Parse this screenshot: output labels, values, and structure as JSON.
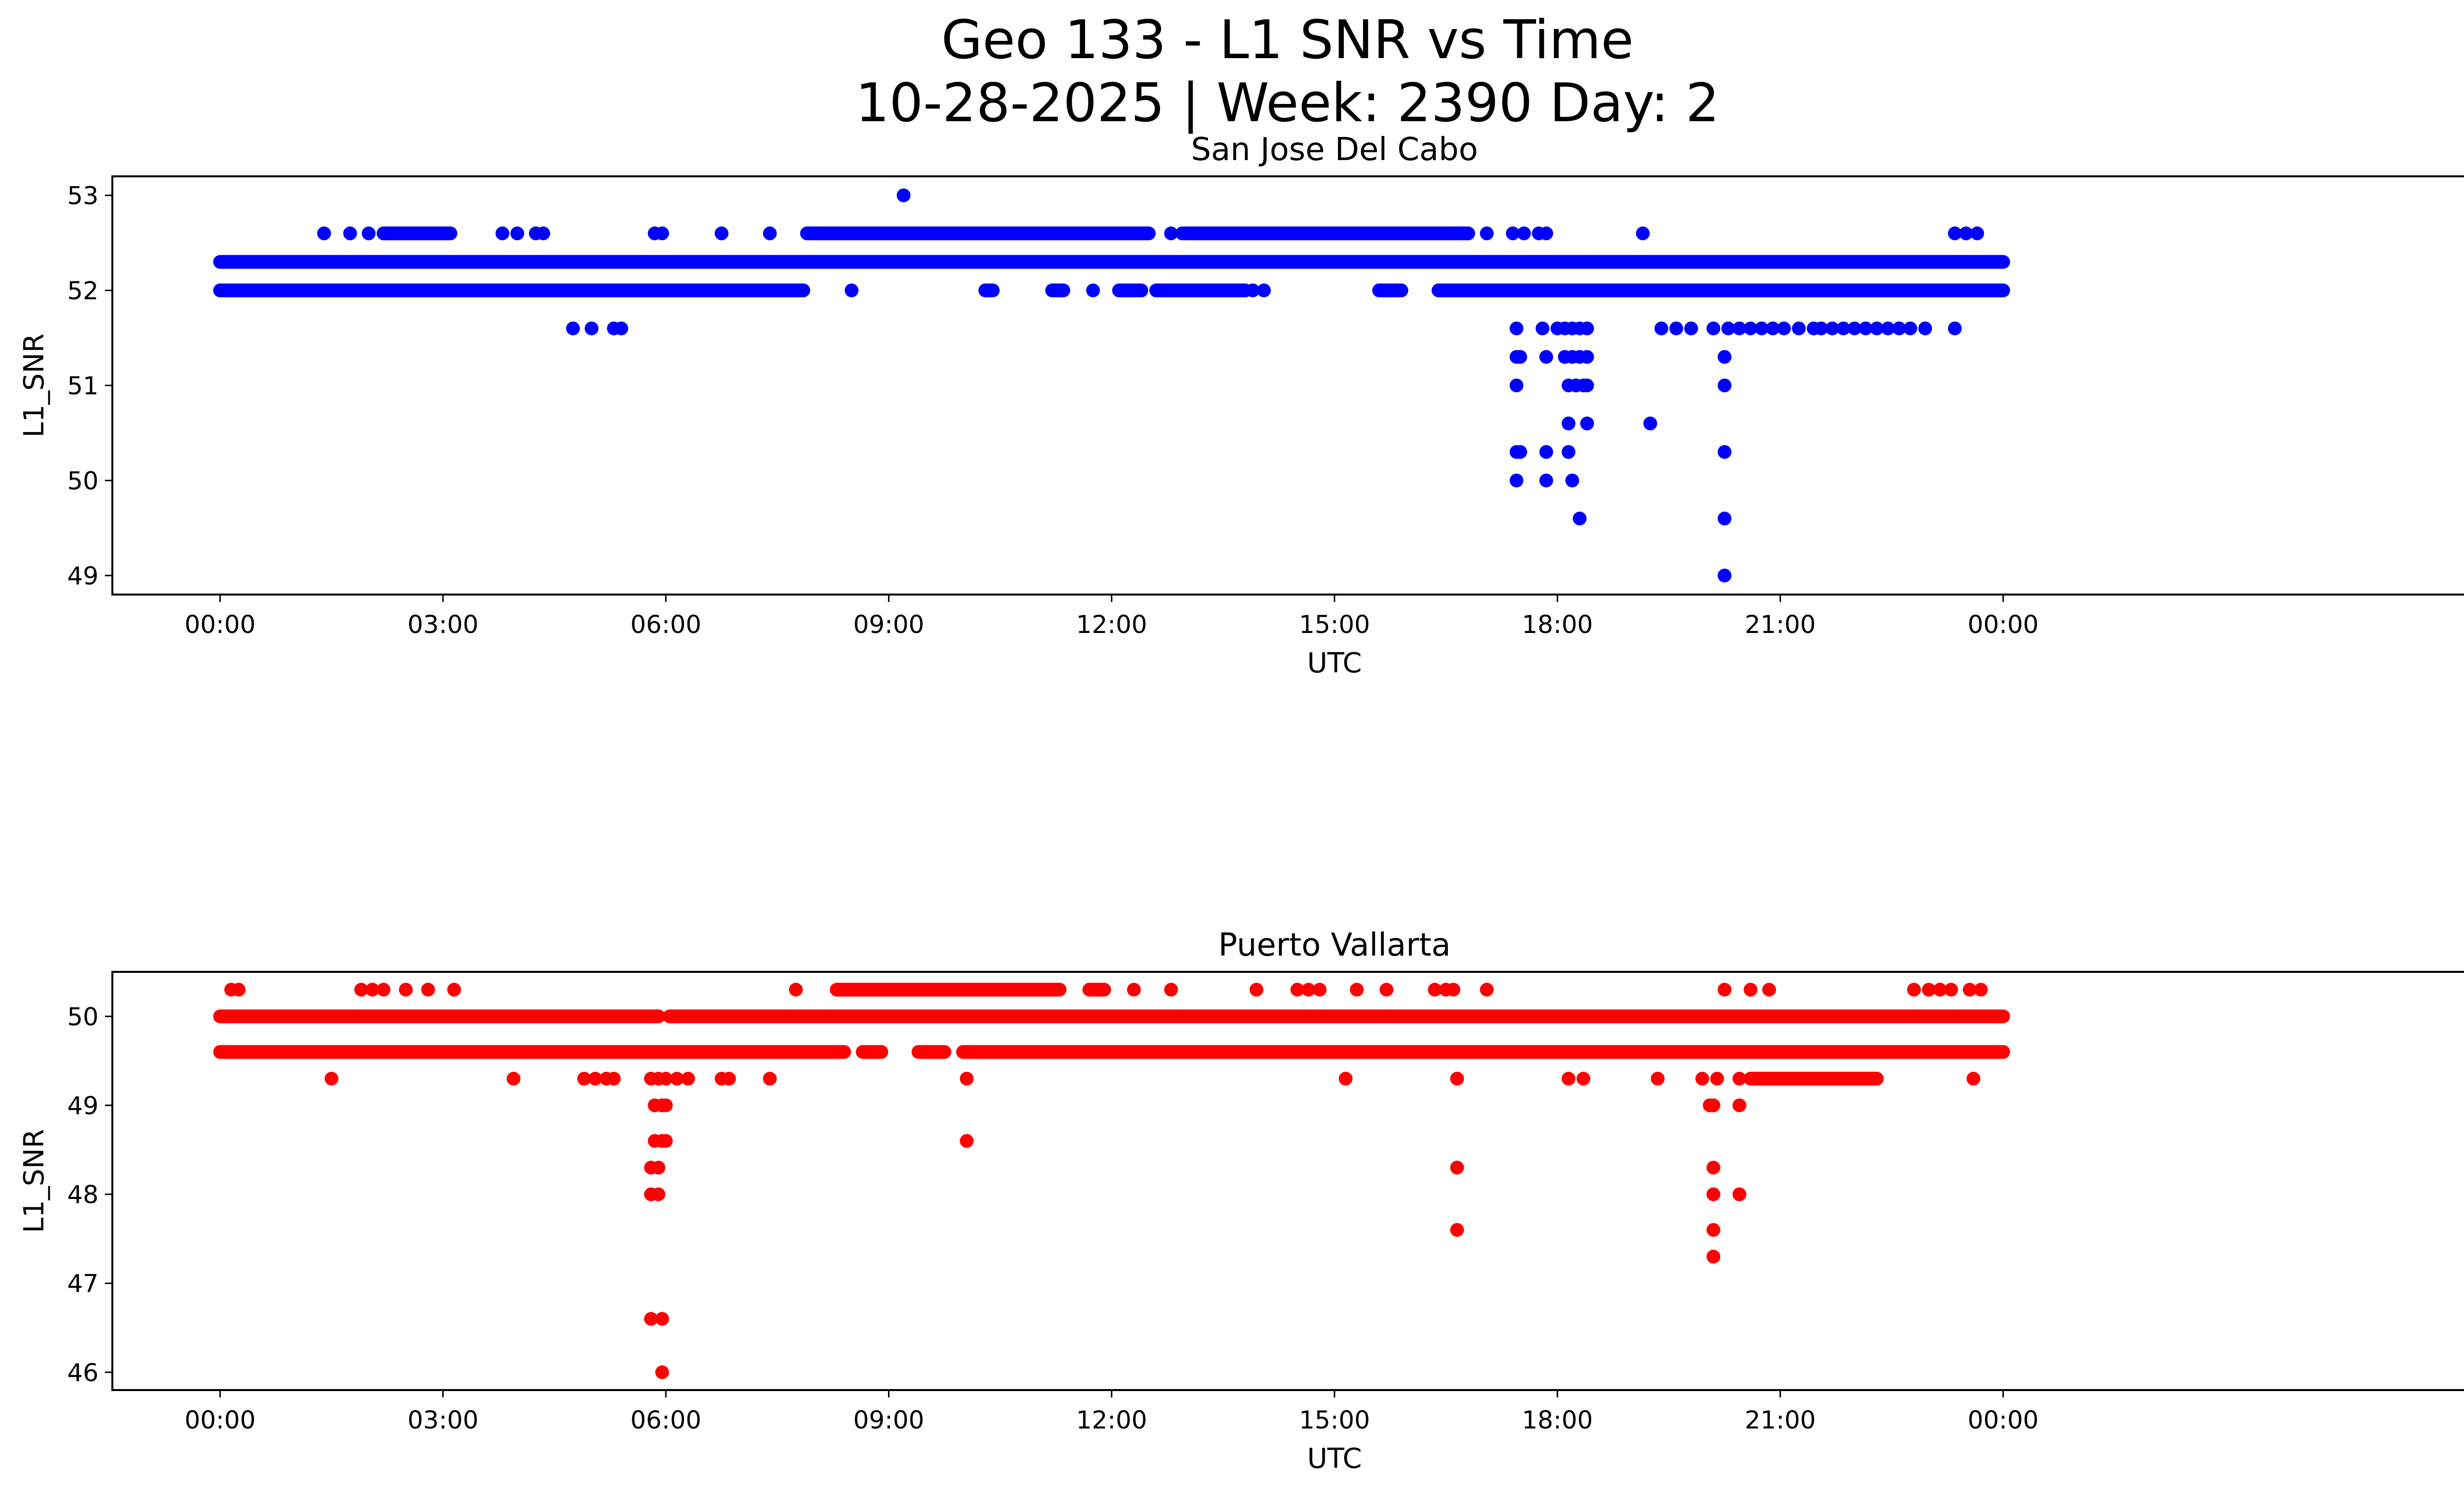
{
  "figure": {
    "title_line1": "Geo 133 - L1 SNR vs Time",
    "title_line2": "10-28-2025 | Week: 2390 Day: 2"
  },
  "chart_data": [
    {
      "type": "scatter",
      "title": "San Jose Del Cabo",
      "xlabel": "UTC",
      "ylabel": "L1_SNR",
      "color": "#0000ff",
      "xlim": [
        -1.45,
        31.45
      ],
      "ylim": [
        48.8,
        53.2
      ],
      "xticks": [
        0,
        3,
        6,
        9,
        12,
        15,
        18,
        21,
        24
      ],
      "xtick_labels": [
        "00:00",
        "03:00",
        "06:00",
        "09:00",
        "12:00",
        "15:00",
        "18:00",
        "21:00",
        "00:00"
      ],
      "yticks": [
        49,
        50,
        51,
        52,
        53
      ],
      "band_series": [
        {
          "y": 52.3,
          "ranges": [
            [
              0,
              18.4
            ],
            [
              18.4,
              24
            ]
          ]
        },
        {
          "y": 52.0,
          "ranges": [
            [
              0,
              7.85
            ],
            [
              10.3,
              10.4
            ],
            [
              11.2,
              11.35
            ],
            [
              12.1,
              12.4
            ],
            [
              12.6,
              13.8
            ],
            [
              15.6,
              15.9
            ],
            [
              16.4,
              24
            ]
          ]
        },
        {
          "y": 52.6,
          "ranges": [
            [
              2.2,
              3.1
            ],
            [
              7.9,
              12.5
            ],
            [
              13.0,
              16.8
            ]
          ]
        }
      ],
      "points": [
        [
          1.4,
          52.6
        ],
        [
          1.75,
          52.6
        ],
        [
          2.0,
          52.6
        ],
        [
          3.8,
          52.6
        ],
        [
          4.0,
          52.6
        ],
        [
          4.25,
          52.6
        ],
        [
          4.35,
          52.6
        ],
        [
          5.85,
          52.6
        ],
        [
          5.95,
          52.6
        ],
        [
          6.75,
          52.6
        ],
        [
          7.4,
          52.6
        ],
        [
          9.2,
          53.0
        ],
        [
          12.8,
          52.6
        ],
        [
          12.95,
          52.6
        ],
        [
          17.05,
          52.6
        ],
        [
          17.4,
          52.6
        ],
        [
          17.55,
          52.6
        ],
        [
          17.75,
          52.6
        ],
        [
          17.85,
          52.6
        ],
        [
          19.15,
          52.6
        ],
        [
          23.35,
          52.6
        ],
        [
          23.5,
          52.6
        ],
        [
          23.65,
          52.6
        ],
        [
          8.5,
          52.0
        ],
        [
          11.75,
          52.0
        ],
        [
          14.05,
          52.0
        ],
        [
          13.9,
          52.0
        ],
        [
          4.75,
          51.6
        ],
        [
          5.0,
          51.6
        ],
        [
          5.3,
          51.6
        ],
        [
          5.4,
          51.6
        ],
        [
          17.45,
          51.6
        ],
        [
          17.8,
          51.6
        ],
        [
          18.0,
          51.6
        ],
        [
          18.1,
          51.6
        ],
        [
          18.2,
          51.6
        ],
        [
          18.3,
          51.6
        ],
        [
          18.4,
          51.6
        ],
        [
          19.4,
          51.6
        ],
        [
          19.6,
          51.6
        ],
        [
          19.8,
          51.6
        ],
        [
          20.1,
          51.6
        ],
        [
          20.3,
          51.6
        ],
        [
          20.45,
          51.6
        ],
        [
          20.6,
          51.6
        ],
        [
          20.75,
          51.6
        ],
        [
          20.9,
          51.6
        ],
        [
          21.05,
          51.6
        ],
        [
          21.25,
          51.6
        ],
        [
          21.45,
          51.6
        ],
        [
          21.55,
          51.6
        ],
        [
          21.7,
          51.6
        ],
        [
          21.85,
          51.6
        ],
        [
          22.0,
          51.6
        ],
        [
          22.15,
          51.6
        ],
        [
          22.3,
          51.6
        ],
        [
          22.45,
          51.6
        ],
        [
          22.6,
          51.6
        ],
        [
          22.75,
          51.6
        ],
        [
          22.95,
          51.6
        ],
        [
          23.35,
          51.6
        ],
        [
          17.45,
          51.3
        ],
        [
          17.5,
          51.3
        ],
        [
          17.85,
          51.3
        ],
        [
          18.1,
          51.3
        ],
        [
          18.2,
          51.3
        ],
        [
          18.3,
          51.3
        ],
        [
          18.4,
          51.3
        ],
        [
          20.25,
          51.3
        ],
        [
          17.45,
          51.0
        ],
        [
          18.15,
          51.0
        ],
        [
          18.25,
          51.0
        ],
        [
          18.35,
          51.0
        ],
        [
          18.4,
          51.0
        ],
        [
          20.25,
          51.0
        ],
        [
          18.15,
          50.6
        ],
        [
          18.4,
          50.6
        ],
        [
          19.25,
          50.6
        ],
        [
          17.45,
          50.3
        ],
        [
          17.5,
          50.3
        ],
        [
          17.85,
          50.3
        ],
        [
          18.15,
          50.3
        ],
        [
          20.25,
          50.3
        ],
        [
          17.45,
          50.0
        ],
        [
          17.85,
          50.0
        ],
        [
          18.2,
          50.0
        ],
        [
          18.3,
          49.6
        ],
        [
          20.25,
          49.6
        ],
        [
          20.25,
          49.0
        ]
      ]
    },
    {
      "type": "scatter",
      "title": "Puerto Vallarta",
      "xlabel": "UTC",
      "ylabel": "L1_SNR",
      "color": "#ff0000",
      "xlim": [
        -1.45,
        31.45
      ],
      "ylim": [
        45.8,
        50.5
      ],
      "xticks": [
        0,
        3,
        6,
        9,
        12,
        15,
        18,
        21,
        24
      ],
      "xtick_labels": [
        "00:00",
        "03:00",
        "06:00",
        "09:00",
        "12:00",
        "15:00",
        "18:00",
        "21:00",
        "00:00"
      ],
      "yticks": [
        46,
        47,
        48,
        49,
        50
      ],
      "band_series": [
        {
          "y": 50.0,
          "ranges": [
            [
              0,
              5.9
            ],
            [
              6.05,
              24
            ]
          ]
        },
        {
          "y": 49.6,
          "ranges": [
            [
              0,
              8.4
            ],
            [
              8.65,
              8.9
            ],
            [
              9.4,
              9.75
            ],
            [
              10.0,
              24
            ]
          ]
        },
        {
          "y": 50.3,
          "ranges": [
            [
              8.3,
              11.3
            ],
            [
              11.7,
              11.9
            ]
          ]
        },
        {
          "y": 49.3,
          "ranges": [
            [
              20.6,
              22.3
            ]
          ]
        }
      ],
      "points": [
        [
          0.15,
          50.3
        ],
        [
          0.25,
          50.3
        ],
        [
          1.9,
          50.3
        ],
        [
          2.05,
          50.3
        ],
        [
          2.2,
          50.3
        ],
        [
          2.5,
          50.3
        ],
        [
          2.8,
          50.3
        ],
        [
          3.15,
          50.3
        ],
        [
          7.75,
          50.3
        ],
        [
          12.3,
          50.3
        ],
        [
          12.8,
          50.3
        ],
        [
          13.95,
          50.3
        ],
        [
          14.5,
          50.3
        ],
        [
          14.65,
          50.3
        ],
        [
          14.8,
          50.3
        ],
        [
          15.3,
          50.3
        ],
        [
          15.7,
          50.3
        ],
        [
          16.35,
          50.3
        ],
        [
          16.5,
          50.3
        ],
        [
          16.6,
          50.3
        ],
        [
          17.05,
          50.3
        ],
        [
          20.25,
          50.3
        ],
        [
          20.6,
          50.3
        ],
        [
          20.85,
          50.3
        ],
        [
          22.8,
          50.3
        ],
        [
          23.0,
          50.3
        ],
        [
          23.15,
          50.3
        ],
        [
          23.3,
          50.3
        ],
        [
          23.55,
          50.3
        ],
        [
          23.7,
          50.3
        ],
        [
          1.5,
          49.3
        ],
        [
          3.95,
          49.3
        ],
        [
          4.9,
          49.3
        ],
        [
          5.05,
          49.3
        ],
        [
          5.2,
          49.3
        ],
        [
          5.3,
          49.3
        ],
        [
          5.8,
          49.3
        ],
        [
          5.9,
          49.3
        ],
        [
          6.0,
          49.3
        ],
        [
          6.15,
          49.3
        ],
        [
          6.3,
          49.3
        ],
        [
          6.75,
          49.3
        ],
        [
          6.85,
          49.3
        ],
        [
          7.4,
          49.3
        ],
        [
          10.05,
          49.3
        ],
        [
          15.15,
          49.3
        ],
        [
          16.65,
          49.3
        ],
        [
          18.15,
          49.3
        ],
        [
          18.35,
          49.3
        ],
        [
          19.35,
          49.3
        ],
        [
          19.95,
          49.3
        ],
        [
          20.15,
          49.3
        ],
        [
          20.45,
          49.3
        ],
        [
          23.6,
          49.3
        ],
        [
          5.85,
          49.0
        ],
        [
          5.95,
          49.0
        ],
        [
          6.0,
          49.0
        ],
        [
          20.05,
          49.0
        ],
        [
          20.1,
          49.0
        ],
        [
          20.45,
          49.0
        ],
        [
          10.05,
          48.6
        ],
        [
          5.85,
          48.6
        ],
        [
          5.95,
          48.6
        ],
        [
          6.0,
          48.6
        ],
        [
          5.8,
          48.3
        ],
        [
          5.9,
          48.3
        ],
        [
          16.65,
          48.3
        ],
        [
          20.1,
          48.3
        ],
        [
          5.8,
          48.0
        ],
        [
          5.9,
          48.0
        ],
        [
          20.1,
          48.0
        ],
        [
          20.45,
          48.0
        ],
        [
          16.65,
          47.6
        ],
        [
          20.1,
          47.6
        ],
        [
          20.1,
          47.3
        ],
        [
          5.8,
          46.6
        ],
        [
          5.95,
          46.6
        ],
        [
          5.95,
          46.0
        ]
      ]
    }
  ]
}
